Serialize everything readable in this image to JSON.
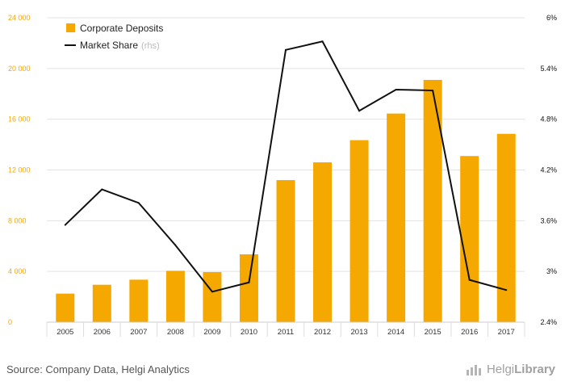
{
  "chart_data": {
    "type": "bar",
    "categories": [
      "2005",
      "2006",
      "2007",
      "2008",
      "2009",
      "2010",
      "2011",
      "2012",
      "2013",
      "2014",
      "2015",
      "2016",
      "2017"
    ],
    "series": [
      {
        "name": "Corporate Deposits",
        "type": "bar",
        "axis": "left",
        "values": [
          2250,
          2950,
          3350,
          4050,
          3950,
          5350,
          11200,
          12600,
          14350,
          16450,
          19100,
          13100,
          14850
        ]
      },
      {
        "name": "Market Share",
        "type": "line",
        "axis": "right",
        "values": [
          3.55,
          3.97,
          3.81,
          3.31,
          2.76,
          2.87,
          5.62,
          5.72,
          4.9,
          5.15,
          5.14,
          2.9,
          2.78
        ]
      }
    ],
    "legend_note": "(rhs)",
    "ylim_left": [
      0,
      24000
    ],
    "yticks_left": [
      "0",
      "4 000",
      "8 000",
      "12 000",
      "16 000",
      "20 000",
      "24 000"
    ],
    "ylim_right": [
      2.4,
      6.0
    ],
    "yticks_right": [
      "2.4%",
      "3%",
      "3.6%",
      "4.2%",
      "4.8%",
      "5.4%",
      "6%"
    ],
    "grid": true,
    "legend_position": "top-left"
  },
  "colors": {
    "bar": "#f5a800",
    "line": "#111111",
    "grid": "#e3e3e3"
  },
  "footer": {
    "source": "Source: Company Data, Helgi Analytics",
    "brand_light": "Helgi",
    "brand_bold": "Library",
    "brand_icon": "helgi-logo-icon"
  }
}
